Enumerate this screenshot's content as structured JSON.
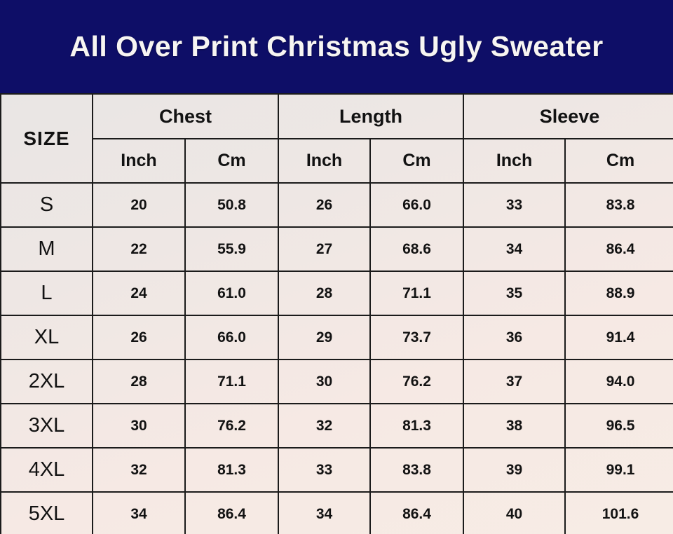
{
  "banner": {
    "title": "All Over Print Christmas Ugly Sweater",
    "background_color": "#0e0e67",
    "text_color": "#f7f5f2"
  },
  "table": {
    "size_header": "SIZE",
    "groups": [
      {
        "label": "Chest"
      },
      {
        "label": "Length"
      },
      {
        "label": "Sleeve"
      }
    ],
    "unit_headers": [
      "Inch",
      "Cm"
    ],
    "rows": [
      {
        "size": "S",
        "values": [
          "20",
          "50.8",
          "26",
          "66.0",
          "33",
          "83.8"
        ]
      },
      {
        "size": "M",
        "values": [
          "22",
          "55.9",
          "27",
          "68.6",
          "34",
          "86.4"
        ]
      },
      {
        "size": "L",
        "values": [
          "24",
          "61.0",
          "28",
          "71.1",
          "35",
          "88.9"
        ]
      },
      {
        "size": "XL",
        "values": [
          "26",
          "66.0",
          "29",
          "73.7",
          "36",
          "91.4"
        ]
      },
      {
        "size": "2XL",
        "values": [
          "28",
          "71.1",
          "30",
          "76.2",
          "37",
          "94.0"
        ]
      },
      {
        "size": "3XL",
        "values": [
          "30",
          "76.2",
          "32",
          "81.3",
          "38",
          "96.5"
        ]
      },
      {
        "size": "4XL",
        "values": [
          "32",
          "81.3",
          "33",
          "83.8",
          "39",
          "99.1"
        ]
      },
      {
        "size": "5XL",
        "values": [
          "34",
          "86.4",
          "34",
          "86.4",
          "40",
          "101.6"
        ]
      }
    ],
    "border_color": "#1b1b1b",
    "background_tint": [
      "#e9e6e4",
      "#f7ece5"
    ]
  },
  "chart_data": {
    "type": "table",
    "title": "All Over Print Christmas Ugly Sweater",
    "columns": [
      "SIZE",
      "Chest Inch",
      "Chest Cm",
      "Length Inch",
      "Length Cm",
      "Sleeve Inch",
      "Sleeve Cm"
    ],
    "rows": [
      [
        "S",
        20,
        50.8,
        26,
        66.0,
        33,
        83.8
      ],
      [
        "M",
        22,
        55.9,
        27,
        68.6,
        34,
        86.4
      ],
      [
        "L",
        24,
        61.0,
        28,
        71.1,
        35,
        88.9
      ],
      [
        "XL",
        26,
        66.0,
        29,
        73.7,
        36,
        91.4
      ],
      [
        "2XL",
        28,
        71.1,
        30,
        76.2,
        37,
        94.0
      ],
      [
        "3XL",
        30,
        76.2,
        32,
        81.3,
        38,
        96.5
      ],
      [
        "4XL",
        32,
        81.3,
        33,
        83.8,
        39,
        99.1
      ],
      [
        "5XL",
        34,
        86.4,
        34,
        86.4,
        40,
        101.6
      ]
    ]
  }
}
